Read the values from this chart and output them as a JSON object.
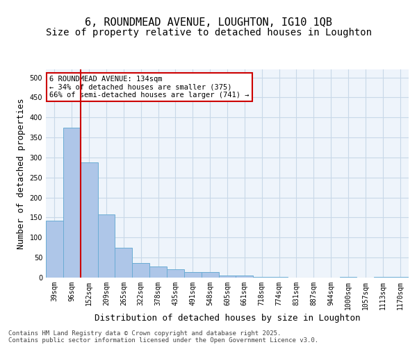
{
  "title_line1": "6, ROUNDMEAD AVENUE, LOUGHTON, IG10 1QB",
  "title_line2": "Size of property relative to detached houses in Loughton",
  "xlabel": "Distribution of detached houses by size in Loughton",
  "ylabel": "Number of detached properties",
  "categories": [
    "39sqm",
    "96sqm",
    "152sqm",
    "209sqm",
    "265sqm",
    "322sqm",
    "378sqm",
    "435sqm",
    "491sqm",
    "548sqm",
    "605sqm",
    "661sqm",
    "718sqm",
    "774sqm",
    "831sqm",
    "887sqm",
    "944sqm",
    "1000sqm",
    "1057sqm",
    "1113sqm",
    "1170sqm"
  ],
  "values": [
    143,
    375,
    287,
    157,
    75,
    37,
    27,
    20,
    14,
    14,
    5,
    5,
    1,
    1,
    0,
    0,
    0,
    1,
    0,
    1,
    1
  ],
  "bar_color": "#aec6e8",
  "bar_edge_color": "#6aacd4",
  "grid_color": "#c8d8e8",
  "background_color": "#eef4fb",
  "vline_x_index": 1,
  "vline_color": "#cc0000",
  "annotation_text": "6 ROUNDMEAD AVENUE: 134sqm\n← 34% of detached houses are smaller (375)\n66% of semi-detached houses are larger (741) →",
  "annotation_box_color": "#cc0000",
  "ylim": [
    0,
    520
  ],
  "yticks": [
    0,
    50,
    100,
    150,
    200,
    250,
    300,
    350,
    400,
    450,
    500
  ],
  "footnote": "Contains HM Land Registry data © Crown copyright and database right 2025.\nContains public sector information licensed under the Open Government Licence v3.0.",
  "title_fontsize": 11,
  "subtitle_fontsize": 10,
  "tick_fontsize": 7,
  "ylabel_fontsize": 9,
  "xlabel_fontsize": 9,
  "annotation_fontsize": 7.5,
  "footnote_fontsize": 6.5
}
